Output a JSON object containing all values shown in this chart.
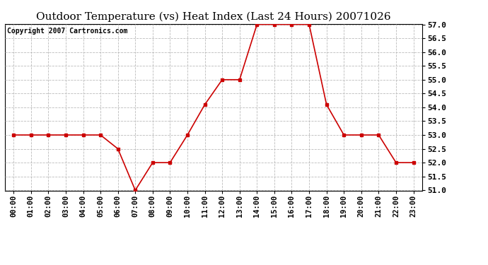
{
  "title": "Outdoor Temperature (vs) Heat Index (Last 24 Hours) 20071026",
  "copyright_text": "Copyright 2007 Cartronics.com",
  "x_labels": [
    "00:00",
    "01:00",
    "02:00",
    "03:00",
    "04:00",
    "05:00",
    "06:00",
    "07:00",
    "08:00",
    "09:00",
    "10:00",
    "11:00",
    "12:00",
    "13:00",
    "14:00",
    "15:00",
    "16:00",
    "17:00",
    "18:00",
    "19:00",
    "20:00",
    "21:00",
    "22:00",
    "23:00"
  ],
  "y_values": [
    53.0,
    53.0,
    53.0,
    53.0,
    53.0,
    53.0,
    52.5,
    51.0,
    52.0,
    52.0,
    53.0,
    54.1,
    55.0,
    55.0,
    57.0,
    57.0,
    57.0,
    57.0,
    54.1,
    53.0,
    53.0,
    53.0,
    52.0,
    52.0
  ],
  "line_color": "#cc0000",
  "marker": "s",
  "marker_size": 3,
  "ylim": [
    51.0,
    57.0
  ],
  "ytick_min": 51.0,
  "ytick_max": 57.0,
  "ytick_step": 0.5,
  "grid_color": "#bbbbbb",
  "grid_style": "--",
  "background_color": "#ffffff",
  "title_fontsize": 11,
  "copyright_fontsize": 7,
  "tick_fontsize": 7.5,
  "ytick_fontsize": 8
}
